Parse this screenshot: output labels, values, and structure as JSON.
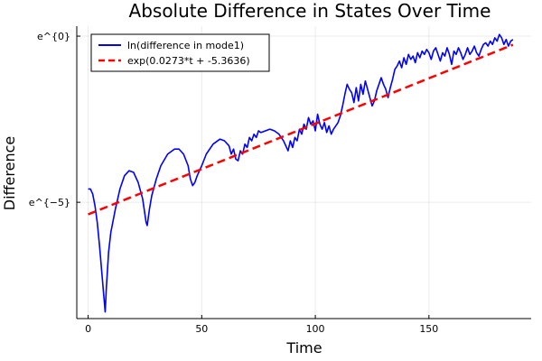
{
  "chart_data": {
    "type": "line",
    "title": "Absolute Difference in States Over Time",
    "xlabel": "Time",
    "ylabel": "Difference",
    "xlim": [
      -5,
      195
    ],
    "ylim": [
      -8.5,
      0.3
    ],
    "x_ticks": [
      0,
      50,
      100,
      150
    ],
    "x_tick_labels": [
      "0",
      "50",
      "100",
      "150"
    ],
    "y_ticks": [
      -5,
      0
    ],
    "y_tick_labels": [
      "e^{−5}",
      "e^{0}"
    ],
    "grid": true,
    "legend_position": "top-left",
    "series": [
      {
        "name": "ln(difference in mode1)",
        "color": "#0000ff",
        "style": "solid",
        "points": [
          [
            0,
            -4.6
          ],
          [
            1,
            -4.6
          ],
          [
            2,
            -4.75
          ],
          [
            3,
            -5.1
          ],
          [
            4,
            -5.6
          ],
          [
            5,
            -6.3
          ],
          [
            6,
            -7.1
          ],
          [
            7,
            -7.9
          ],
          [
            7.5,
            -8.3
          ],
          [
            8,
            -7.6
          ],
          [
            9,
            -6.5
          ],
          [
            10,
            -5.9
          ],
          [
            12,
            -5.2
          ],
          [
            14,
            -4.6
          ],
          [
            16,
            -4.2
          ],
          [
            18,
            -4.05
          ],
          [
            20,
            -4.1
          ],
          [
            22,
            -4.4
          ],
          [
            24,
            -4.9
          ],
          [
            25.5,
            -5.6
          ],
          [
            26,
            -5.7
          ],
          [
            27,
            -5.2
          ],
          [
            28,
            -4.8
          ],
          [
            30,
            -4.3
          ],
          [
            32,
            -3.9
          ],
          [
            35,
            -3.55
          ],
          [
            38,
            -3.4
          ],
          [
            40,
            -3.4
          ],
          [
            42,
            -3.55
          ],
          [
            44,
            -3.9
          ],
          [
            45,
            -4.3
          ],
          [
            46,
            -4.5
          ],
          [
            47,
            -4.4
          ],
          [
            48,
            -4.2
          ],
          [
            50,
            -3.9
          ],
          [
            52,
            -3.55
          ],
          [
            55,
            -3.25
          ],
          [
            58,
            -3.1
          ],
          [
            60,
            -3.15
          ],
          [
            62,
            -3.3
          ],
          [
            63,
            -3.55
          ],
          [
            64,
            -3.4
          ],
          [
            65,
            -3.7
          ],
          [
            66,
            -3.75
          ],
          [
            67,
            -3.45
          ],
          [
            68,
            -3.55
          ],
          [
            69,
            -3.25
          ],
          [
            70,
            -3.35
          ],
          [
            71,
            -3.05
          ],
          [
            72,
            -3.15
          ],
          [
            73,
            -2.95
          ],
          [
            74,
            -3.05
          ],
          [
            75,
            -2.85
          ],
          [
            76,
            -2.9
          ],
          [
            78,
            -2.85
          ],
          [
            80,
            -2.8
          ],
          [
            82,
            -2.85
          ],
          [
            84,
            -2.95
          ],
          [
            86,
            -3.15
          ],
          [
            88,
            -3.45
          ],
          [
            89,
            -3.15
          ],
          [
            90,
            -3.35
          ],
          [
            91,
            -3.05
          ],
          [
            92,
            -3.15
          ],
          [
            93,
            -2.8
          ],
          [
            94,
            -2.95
          ],
          [
            95,
            -2.65
          ],
          [
            96,
            -2.8
          ],
          [
            97,
            -2.45
          ],
          [
            98,
            -2.65
          ],
          [
            99,
            -2.55
          ],
          [
            100,
            -2.85
          ],
          [
            101,
            -2.35
          ],
          [
            102,
            -2.65
          ],
          [
            103,
            -2.8
          ],
          [
            104,
            -2.6
          ],
          [
            105,
            -2.9
          ],
          [
            106,
            -2.7
          ],
          [
            107,
            -2.95
          ],
          [
            108,
            -2.8
          ],
          [
            110,
            -2.6
          ],
          [
            111,
            -2.4
          ],
          [
            112,
            -2.1
          ],
          [
            113,
            -1.75
          ],
          [
            114,
            -1.45
          ],
          [
            115,
            -1.6
          ],
          [
            116,
            -1.7
          ],
          [
            117,
            -2.0
          ],
          [
            118,
            -1.55
          ],
          [
            119,
            -1.95
          ],
          [
            120,
            -1.45
          ],
          [
            121,
            -1.75
          ],
          [
            122,
            -1.35
          ],
          [
            123,
            -1.6
          ],
          [
            124,
            -1.85
          ],
          [
            125,
            -2.1
          ],
          [
            126,
            -1.95
          ],
          [
            127,
            -1.65
          ],
          [
            128,
            -1.45
          ],
          [
            129,
            -1.25
          ],
          [
            130,
            -1.45
          ],
          [
            131,
            -1.6
          ],
          [
            132,
            -1.85
          ],
          [
            133,
            -1.55
          ],
          [
            134,
            -1.3
          ],
          [
            135,
            -1.0
          ],
          [
            136,
            -0.9
          ],
          [
            137,
            -0.75
          ],
          [
            138,
            -0.95
          ],
          [
            139,
            -0.65
          ],
          [
            140,
            -0.85
          ],
          [
            141,
            -0.55
          ],
          [
            142,
            -0.7
          ],
          [
            143,
            -0.6
          ],
          [
            144,
            -0.8
          ],
          [
            145,
            -0.5
          ],
          [
            146,
            -0.65
          ],
          [
            147,
            -0.45
          ],
          [
            148,
            -0.55
          ],
          [
            149,
            -0.4
          ],
          [
            150,
            -0.5
          ],
          [
            151,
            -0.7
          ],
          [
            152,
            -0.45
          ],
          [
            153,
            -0.35
          ],
          [
            154,
            -0.55
          ],
          [
            155,
            -0.75
          ],
          [
            156,
            -0.5
          ],
          [
            157,
            -0.6
          ],
          [
            158,
            -0.35
          ],
          [
            159,
            -0.55
          ],
          [
            160,
            -0.85
          ],
          [
            161,
            -0.45
          ],
          [
            162,
            -0.55
          ],
          [
            163,
            -0.35
          ],
          [
            164,
            -0.5
          ],
          [
            165,
            -0.7
          ],
          [
            166,
            -0.55
          ],
          [
            167,
            -0.35
          ],
          [
            168,
            -0.55
          ],
          [
            169,
            -0.45
          ],
          [
            170,
            -0.3
          ],
          [
            171,
            -0.5
          ],
          [
            172,
            -0.6
          ],
          [
            173,
            -0.4
          ],
          [
            174,
            -0.25
          ],
          [
            175,
            -0.2
          ],
          [
            176,
            -0.3
          ],
          [
            177,
            -0.15
          ],
          [
            178,
            -0.25
          ],
          [
            179,
            -0.05
          ],
          [
            180,
            -0.15
          ],
          [
            181,
            0.05
          ],
          [
            182,
            -0.05
          ],
          [
            183,
            -0.25
          ],
          [
            184,
            -0.1
          ],
          [
            185,
            -0.3
          ],
          [
            186,
            -0.15
          ],
          [
            187,
            -0.1
          ]
        ]
      },
      {
        "name": "exp(0.0273*t + -5.3636)",
        "color": "#ff0000",
        "style": "dashed",
        "slope": 0.0273,
        "intercept": -5.3636,
        "x_range": [
          0,
          187
        ]
      }
    ]
  }
}
